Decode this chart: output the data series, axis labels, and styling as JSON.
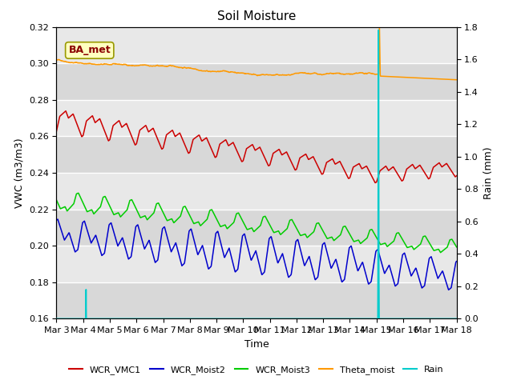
{
  "title": "Soil Moisture",
  "xlabel": "Time",
  "ylabel_left": "VWC (m3/m3)",
  "ylabel_right": "Rain (mm)",
  "ylim_left": [
    0.16,
    0.32
  ],
  "ylim_right": [
    0.0,
    1.8
  ],
  "yticks_left": [
    0.16,
    0.18,
    0.2,
    0.22,
    0.24,
    0.26,
    0.28,
    0.3,
    0.32
  ],
  "yticks_right": [
    0.0,
    0.2,
    0.4,
    0.6,
    0.8,
    1.0,
    1.2,
    1.4,
    1.6,
    1.8
  ],
  "xtick_labels": [
    "Mar 3",
    "Mar 4",
    "Mar 5",
    "Mar 6",
    "Mar 7",
    "Mar 8",
    "Mar 9",
    "Mar 10",
    "Mar 11",
    "Mar 12",
    "Mar 13",
    "Mar 14",
    "Mar 15",
    "Mar 16",
    "Mar 17",
    "Mar 18"
  ],
  "colors": {
    "WCR_VMC1": "#cc0000",
    "WCR_Moist2": "#0000cc",
    "WCR_Moist3": "#00cc00",
    "Theta_moist": "#ff9900",
    "Rain": "#00cccc"
  },
  "legend_label": "BA_met",
  "bg_color": "#e0e0e0"
}
